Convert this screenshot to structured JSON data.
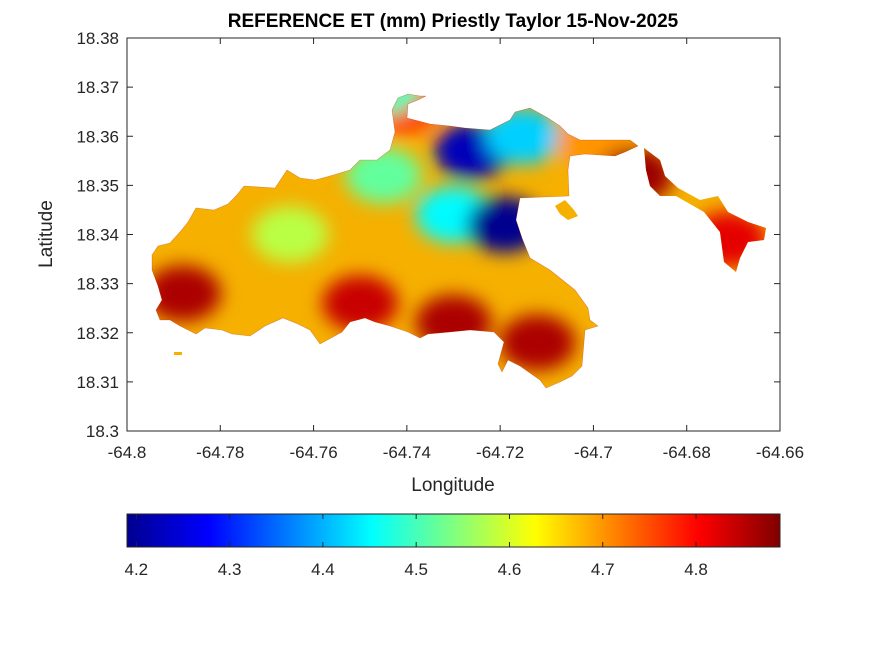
{
  "figure": {
    "title": "REFERENCE ET (mm) Priestly Taylor 15-Nov-2025",
    "xlabel": "Longitude",
    "ylabel": "Latitude"
  },
  "axes": {
    "x_ticks": [
      "-64.8",
      "-64.78",
      "-64.76",
      "-64.74",
      "-64.72",
      "-64.7",
      "-64.68",
      "-64.66"
    ],
    "y_ticks": [
      "18.3",
      "18.31",
      "18.32",
      "18.33",
      "18.34",
      "18.35",
      "18.36",
      "18.37",
      "18.38"
    ]
  },
  "colorbar": {
    "ticks": [
      "4.2",
      "4.3",
      "4.4",
      "4.5",
      "4.6",
      "4.7",
      "4.8"
    ],
    "colormap": "jet"
  },
  "chart_data": {
    "type": "heatmap",
    "title": "REFERENCE ET (mm) Priestly Taylor 15-Nov-2025",
    "xlabel": "Longitude",
    "ylabel": "Latitude",
    "xlim": [
      -64.8,
      -64.66
    ],
    "ylim": [
      18.3,
      18.38
    ],
    "clim": [
      4.19,
      4.89
    ],
    "colormap": "jet",
    "grid": false,
    "colorbar": "south",
    "regions": [
      {
        "name": "",
        "lon": -64.788,
        "lat": 18.328,
        "value": 4.86
      },
      {
        "name": "",
        "lon": -64.75,
        "lat": 18.326,
        "value": 4.84
      },
      {
        "name": "",
        "lon": -64.73,
        "lat": 18.322,
        "value": 4.86
      },
      {
        "name": "",
        "lon": -64.712,
        "lat": 18.318,
        "value": 4.86
      },
      {
        "name": "",
        "lon": -64.765,
        "lat": 18.34,
        "value": 4.58
      },
      {
        "name": "",
        "lon": -64.745,
        "lat": 18.352,
        "value": 4.52
      },
      {
        "name": "",
        "lon": -64.73,
        "lat": 18.344,
        "value": 4.45
      },
      {
        "name": "",
        "lon": -64.726,
        "lat": 18.357,
        "value": 4.23
      },
      {
        "name": "",
        "lon": -64.719,
        "lat": 18.342,
        "value": 4.2
      },
      {
        "name": "",
        "lon": -64.715,
        "lat": 18.36,
        "value": 4.42
      },
      {
        "name": "",
        "lon": -64.741,
        "lat": 18.366,
        "value": 4.76
      },
      {
        "name": "",
        "lon": -64.745,
        "lat": 18.37,
        "value": 4.5
      },
      {
        "name": "",
        "lon": -64.7,
        "lat": 18.359,
        "value": 4.7
      },
      {
        "name": "",
        "lon": -64.691,
        "lat": 18.352,
        "value": 4.87
      },
      {
        "name": "",
        "lon": -64.671,
        "lat": 18.339,
        "value": 4.82
      }
    ]
  }
}
